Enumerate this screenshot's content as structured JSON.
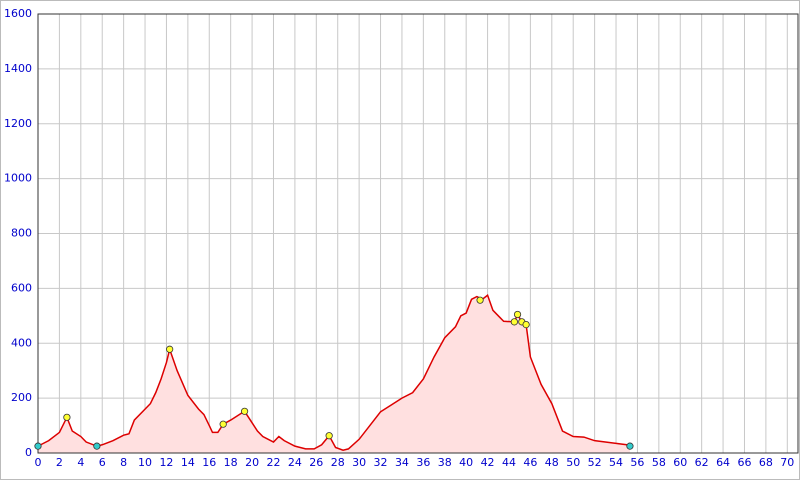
{
  "chart_data": {
    "type": "area",
    "x": [
      0,
      1,
      2,
      2.7,
      3.2,
      4,
      4.5,
      5.5,
      6,
      7,
      8,
      8.5,
      9,
      10,
      10.5,
      11,
      11.5,
      12,
      12.3,
      13,
      14,
      15,
      15.5,
      16,
      16.3,
      16.8,
      17.3,
      18,
      19,
      19.3,
      20,
      20.5,
      21,
      22,
      22.5,
      23,
      24,
      25,
      25.8,
      26.5,
      27.2,
      27.8,
      28.5,
      29,
      30,
      31,
      32,
      33,
      34,
      35,
      36,
      37,
      38,
      39,
      39.5,
      40,
      40.5,
      41,
      41.5,
      42,
      42.5,
      43,
      43.5,
      44.5,
      44.8,
      45.2,
      45.6,
      46,
      47,
      48,
      49,
      50,
      51,
      52,
      53,
      54,
      55,
      55.3
    ],
    "values": [
      25,
      45,
      75,
      130,
      80,
      60,
      40,
      25,
      30,
      45,
      65,
      70,
      120,
      160,
      180,
      220,
      270,
      330,
      378,
      300,
      210,
      160,
      140,
      100,
      75,
      75,
      105,
      120,
      145,
      152,
      110,
      80,
      60,
      40,
      60,
      45,
      25,
      15,
      15,
      30,
      63,
      20,
      10,
      15,
      50,
      100,
      150,
      175,
      200,
      220,
      270,
      350,
      420,
      460,
      500,
      510,
      560,
      570,
      560,
      575,
      520,
      500,
      480,
      478,
      505,
      478,
      468,
      350,
      250,
      180,
      80,
      60,
      58,
      45,
      40,
      35,
      30,
      25
    ],
    "color": "#dd0000",
    "fill_color": "#ffe0e0",
    "points": {
      "x": [
        0,
        5.5,
        55.3,
        2.7,
        12.3,
        17.3,
        19.3,
        27.2,
        41.3,
        44.5,
        44.8,
        45.2,
        45.6
      ],
      "values": [
        25,
        25,
        25,
        130,
        378,
        105,
        152,
        63,
        557,
        478,
        505,
        478,
        468
      ],
      "colors": [
        "#33cccc",
        "#33cccc",
        "#33cccc",
        "#ffff33",
        "#ffff33",
        "#ffff33",
        "#ffff33",
        "#ffff33",
        "#ffff33",
        "#ffff33",
        "#ffff33",
        "#ffff33",
        "#ffff33"
      ]
    },
    "xlim": [
      0,
      71
    ],
    "ylim": [
      0,
      1600
    ],
    "xticks": [
      0,
      2,
      4,
      6,
      8,
      10,
      12,
      14,
      16,
      18,
      20,
      22,
      24,
      26,
      28,
      30,
      32,
      34,
      36,
      38,
      40,
      42,
      44,
      46,
      48,
      50,
      52,
      54,
      56,
      58,
      60,
      62,
      64,
      66,
      68,
      70
    ],
    "yticks": [
      0,
      200,
      400,
      600,
      800,
      1000,
      1200,
      1400,
      1600
    ],
    "grid": true
  }
}
